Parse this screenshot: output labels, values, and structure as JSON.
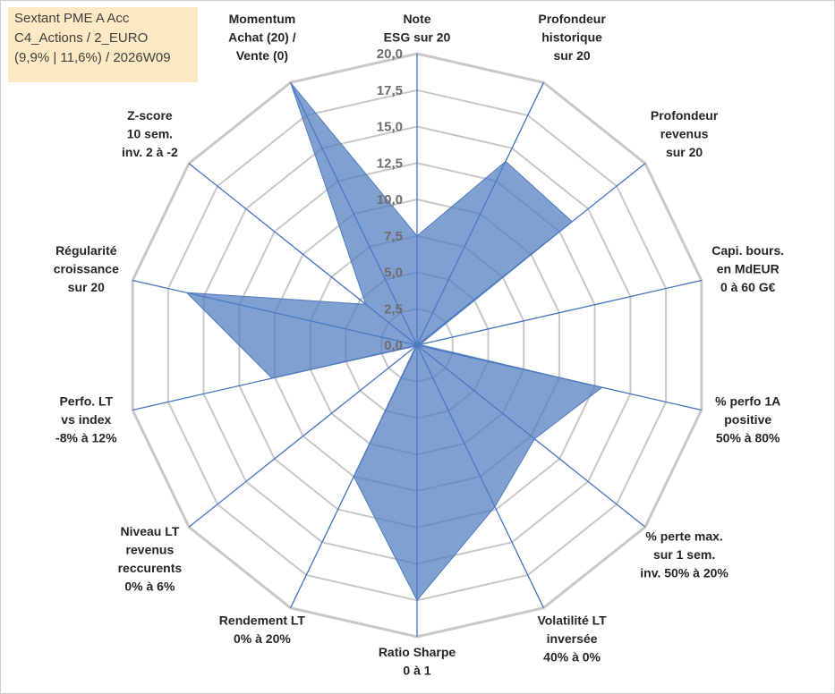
{
  "info_box": {
    "line1": "Sextant PME A Acc",
    "line2": "C4_Actions / 2_EURO",
    "line3": "(9,9% | 11,6%) / 2026W09"
  },
  "chart_data": {
    "type": "radar",
    "rmin": 0,
    "rmax": 20,
    "tick_labels": [
      "0,0",
      "2,5",
      "5,0",
      "7,5",
      "10,0",
      "12,5",
      "15,0",
      "17,5",
      "20,0"
    ],
    "axes": [
      "Note\nESG sur 20",
      "Profondeur\nhistorique\nsur 20",
      "Profondeur\nrevenus\nsur 20",
      "Capi. bours.\nen MdEUR\n0 à 60 G€",
      "% perfo 1A\npositive\n50% à 80%",
      "% perte max.\nsur 1 sem.\ninv. 50% à 20%",
      "Volatilité LT\ninversée\n40% à 0%",
      "Ratio Sharpe\n0 à 1",
      "Rendement LT\n0% à 20%",
      "Niveau LT\nrevenus\nreccurents\n0% à 6%",
      "Perfo. LT\nvs index\n-8% à 12%",
      "Régularité\ncroissance\nsur 20",
      "Z-score\n10 sem.\ninv. 2 à -2",
      "Momentum\nAchat (20) /\nVente (0)"
    ],
    "series": [
      {
        "values": [
          7.5,
          14.0,
          13.6,
          0.2,
          13.0,
          10.3,
          12.3,
          17.5,
          10.0,
          0.1,
          10.2,
          16.2,
          4.5,
          20.0
        ],
        "color": "#4f7bbf"
      }
    ],
    "colors": {
      "fill": "#4f7bbf",
      "spokes": "#4472c4",
      "grid": "#c8c8c8",
      "info_bg": "#fde9c4"
    }
  }
}
